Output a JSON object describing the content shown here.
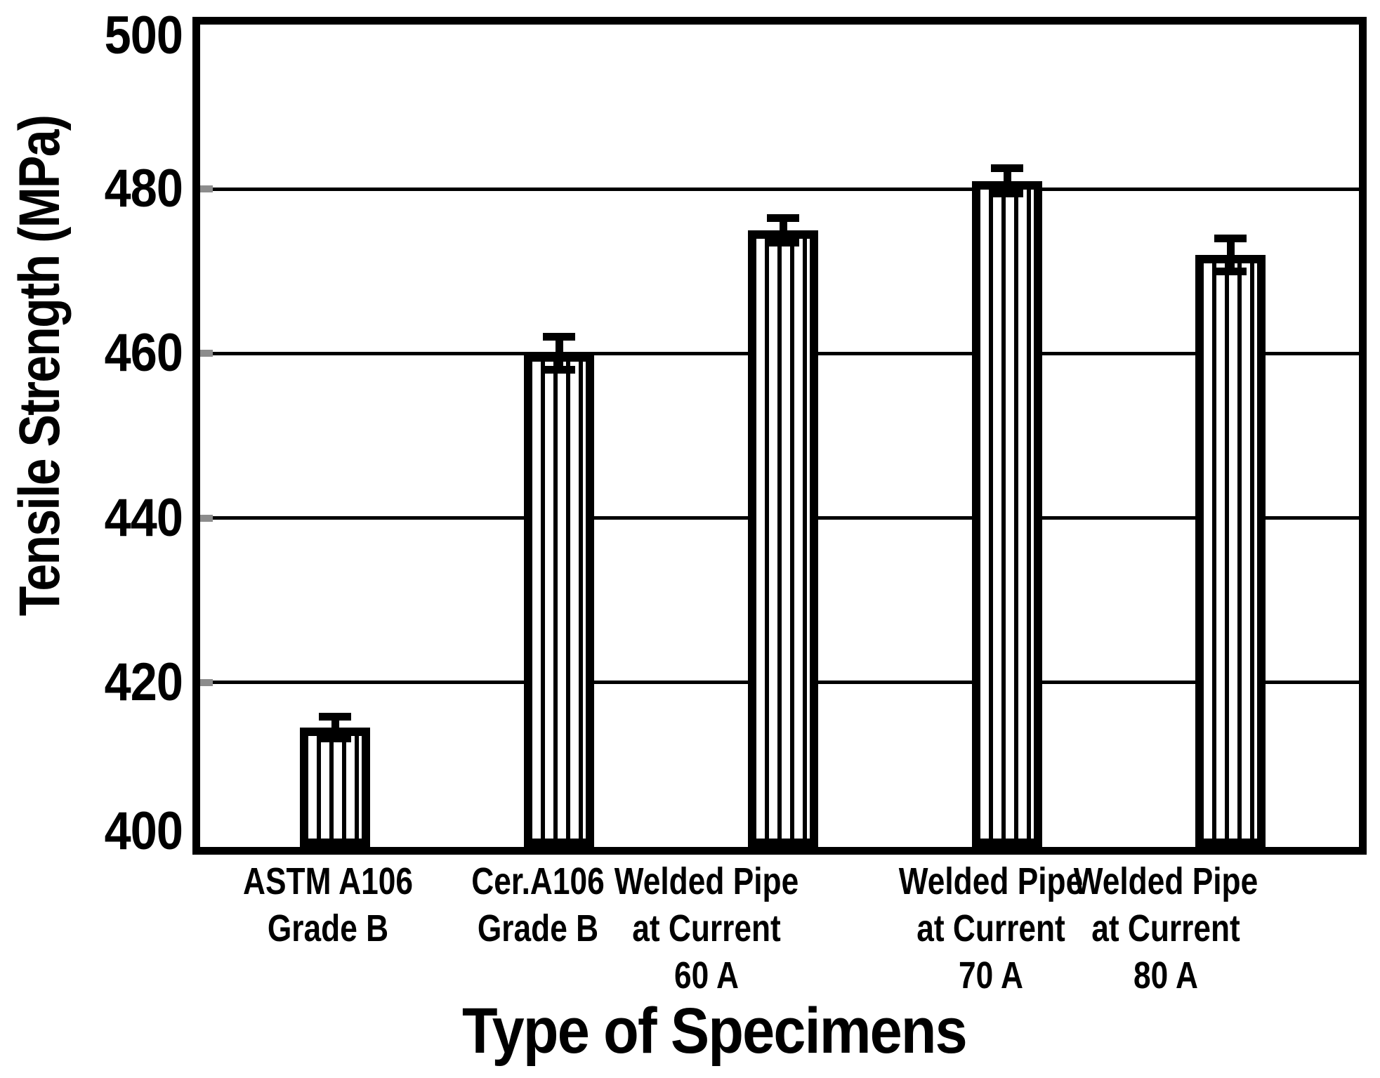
{
  "chart_data": {
    "type": "bar",
    "title": "",
    "xlabel": "Type of Specimens",
    "ylabel": "Tensile Strength (MPa)",
    "ylim": [
      400,
      500
    ],
    "yticks": [
      400,
      420,
      440,
      460,
      480,
      500
    ],
    "grid": "horizontal gridlines at each y tick across plot, bars drawn on top",
    "legend": "none",
    "bar_fill": "white with vertical black hatch stripes",
    "bar_border_color": "#000000",
    "gridline_color": "#000000",
    "axis_tick_color": "#8c8c8c",
    "error_bars": true,
    "categories": [
      "ASTM A106\nGrade B",
      "Cer.A106\nGrade B",
      "Welded Pipe\nat Current\n60 A",
      "Welded Pipe\nat Current\n70 A",
      "Welded Pipe\nat Current\n80 A"
    ],
    "values": [
      414.5,
      460.0,
      475.0,
      481.0,
      472.0
    ],
    "errors": [
      1.3,
      2.0,
      1.5,
      1.5,
      2.0
    ]
  }
}
